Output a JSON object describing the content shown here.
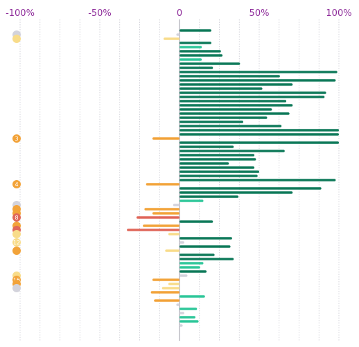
{
  "chart_data": {
    "type": "bar",
    "orientation": "horizontal",
    "xlim": [
      -100,
      100
    ],
    "x_ticks": [
      {
        "value": -100,
        "label": "-100%"
      },
      {
        "value": -50,
        "label": "-50%"
      },
      {
        "value": 0,
        "label": "0"
      },
      {
        "value": 50,
        "label": "50%"
      },
      {
        "value": 100,
        "label": "100%"
      }
    ],
    "grid_minor_step": 12.5,
    "grid": true,
    "colors": {
      "dark_green": "#0f7a5a",
      "light_green": "#2fc79a",
      "orange": "#f2a33a",
      "light_yellow": "#f8dc8a",
      "red": "#e0675a",
      "grey": "#d3d3dc",
      "badge_text": "#ffffff"
    },
    "rows": [
      {
        "value": 20,
        "color": "dark_green"
      },
      {
        "value": -2,
        "color": "grey"
      },
      {
        "value": -10,
        "color": "light_yellow"
      },
      {
        "value": 20,
        "color": "dark_green"
      },
      {
        "value": 14,
        "color": "light_green"
      },
      {
        "value": 26,
        "color": "dark_green"
      },
      {
        "value": 27,
        "color": "dark_green"
      },
      {
        "value": 14,
        "color": "light_green"
      },
      {
        "value": 38,
        "color": "dark_green"
      },
      {
        "value": 21,
        "color": "dark_green"
      },
      {
        "value": 99,
        "color": "dark_green"
      },
      {
        "value": 63,
        "color": "dark_green"
      },
      {
        "value": 98,
        "color": "dark_green"
      },
      {
        "value": 71,
        "color": "dark_green"
      },
      {
        "value": 52,
        "color": "dark_green"
      },
      {
        "value": 92,
        "color": "dark_green"
      },
      {
        "value": 91,
        "color": "dark_green"
      },
      {
        "value": 67,
        "color": "dark_green"
      },
      {
        "value": 71,
        "color": "dark_green"
      },
      {
        "value": 58,
        "color": "dark_green"
      },
      {
        "value": 69,
        "color": "dark_green"
      },
      {
        "value": 55,
        "color": "dark_green"
      },
      {
        "value": 40,
        "color": "dark_green"
      },
      {
        "value": 64,
        "color": "dark_green"
      },
      {
        "value": 100,
        "color": "dark_green"
      },
      {
        "value": 100,
        "color": "dark_green"
      },
      {
        "value": -17,
        "color": "orange",
        "badge": "3"
      },
      {
        "value": 100,
        "color": "dark_green"
      },
      {
        "value": 34,
        "color": "dark_green"
      },
      {
        "value": 66,
        "color": "dark_green"
      },
      {
        "value": 47,
        "color": "dark_green"
      },
      {
        "value": 48,
        "color": "dark_green"
      },
      {
        "value": 31,
        "color": "dark_green"
      },
      {
        "value": 47,
        "color": "dark_green"
      },
      {
        "value": 50,
        "color": "dark_green"
      },
      {
        "value": 49,
        "color": "dark_green"
      },
      {
        "value": 98,
        "color": "dark_green"
      },
      {
        "value": -21,
        "color": "orange",
        "badge": "4"
      },
      {
        "value": 89,
        "color": "dark_green"
      },
      {
        "value": 71,
        "color": "dark_green"
      },
      {
        "value": 37,
        "color": "dark_green"
      },
      {
        "value": 15,
        "color": "light_green"
      },
      {
        "value": -4,
        "color": "grey"
      },
      {
        "value": -22,
        "color": "orange"
      },
      {
        "value": -17,
        "color": "orange"
      },
      {
        "value": -27,
        "color": "red",
        "badge": "8"
      },
      {
        "value": 21,
        "color": "dark_green"
      },
      {
        "value": -23,
        "color": "orange"
      },
      {
        "value": -33,
        "color": "red"
      },
      {
        "value": -7,
        "color": "light_yellow"
      },
      {
        "value": 33,
        "color": "dark_green"
      },
      {
        "value": 3,
        "color": "grey"
      },
      {
        "value": 32,
        "color": "dark_green"
      },
      {
        "value": -9,
        "color": "light_yellow",
        "badge": "12"
      },
      {
        "value": 22,
        "color": "dark_green"
      },
      {
        "value": 34,
        "color": "dark_green"
      },
      {
        "value": 15,
        "color": "light_green"
      },
      {
        "value": 13,
        "color": "light_green"
      },
      {
        "value": 17,
        "color": "dark_green"
      },
      {
        "value": 5,
        "color": "grey"
      },
      {
        "value": -17,
        "color": "orange"
      },
      {
        "value": -7,
        "color": "light_yellow"
      },
      {
        "value": -11,
        "color": "light_yellow"
      },
      {
        "value": -18,
        "color": "orange",
        "badge": "16"
      },
      {
        "value": 16,
        "color": "light_green"
      },
      {
        "value": -16,
        "color": "orange"
      },
      {
        "value": -2,
        "color": "grey"
      },
      {
        "value": 11,
        "color": "light_green"
      },
      {
        "value": 3,
        "color": "grey"
      },
      {
        "value": 10,
        "color": "light_green"
      },
      {
        "value": 12,
        "color": "light_green"
      },
      {
        "value": 2,
        "color": "grey"
      }
    ],
    "side_markers": [
      {
        "color": "grey",
        "label": ""
      },
      {
        "color": "light_yellow",
        "label": ""
      },
      {
        "color": "orange",
        "label": "3"
      },
      {
        "color": "orange",
        "label": "4"
      },
      {
        "color": "grey",
        "label": ""
      },
      {
        "color": "orange",
        "label": ""
      },
      {
        "color": "orange",
        "label": ""
      },
      {
        "color": "red",
        "label": "8"
      },
      {
        "color": "orange",
        "label": ""
      },
      {
        "color": "red",
        "label": ""
      },
      {
        "color": "light_yellow",
        "label": ""
      },
      {
        "color": "light_yellow",
        "label": "12"
      },
      {
        "color": "orange",
        "label": ""
      },
      {
        "color": "light_yellow",
        "label": ""
      },
      {
        "color": "orange",
        "label": "16"
      },
      {
        "color": "orange",
        "label": ""
      },
      {
        "color": "grey",
        "label": ""
      }
    ]
  }
}
